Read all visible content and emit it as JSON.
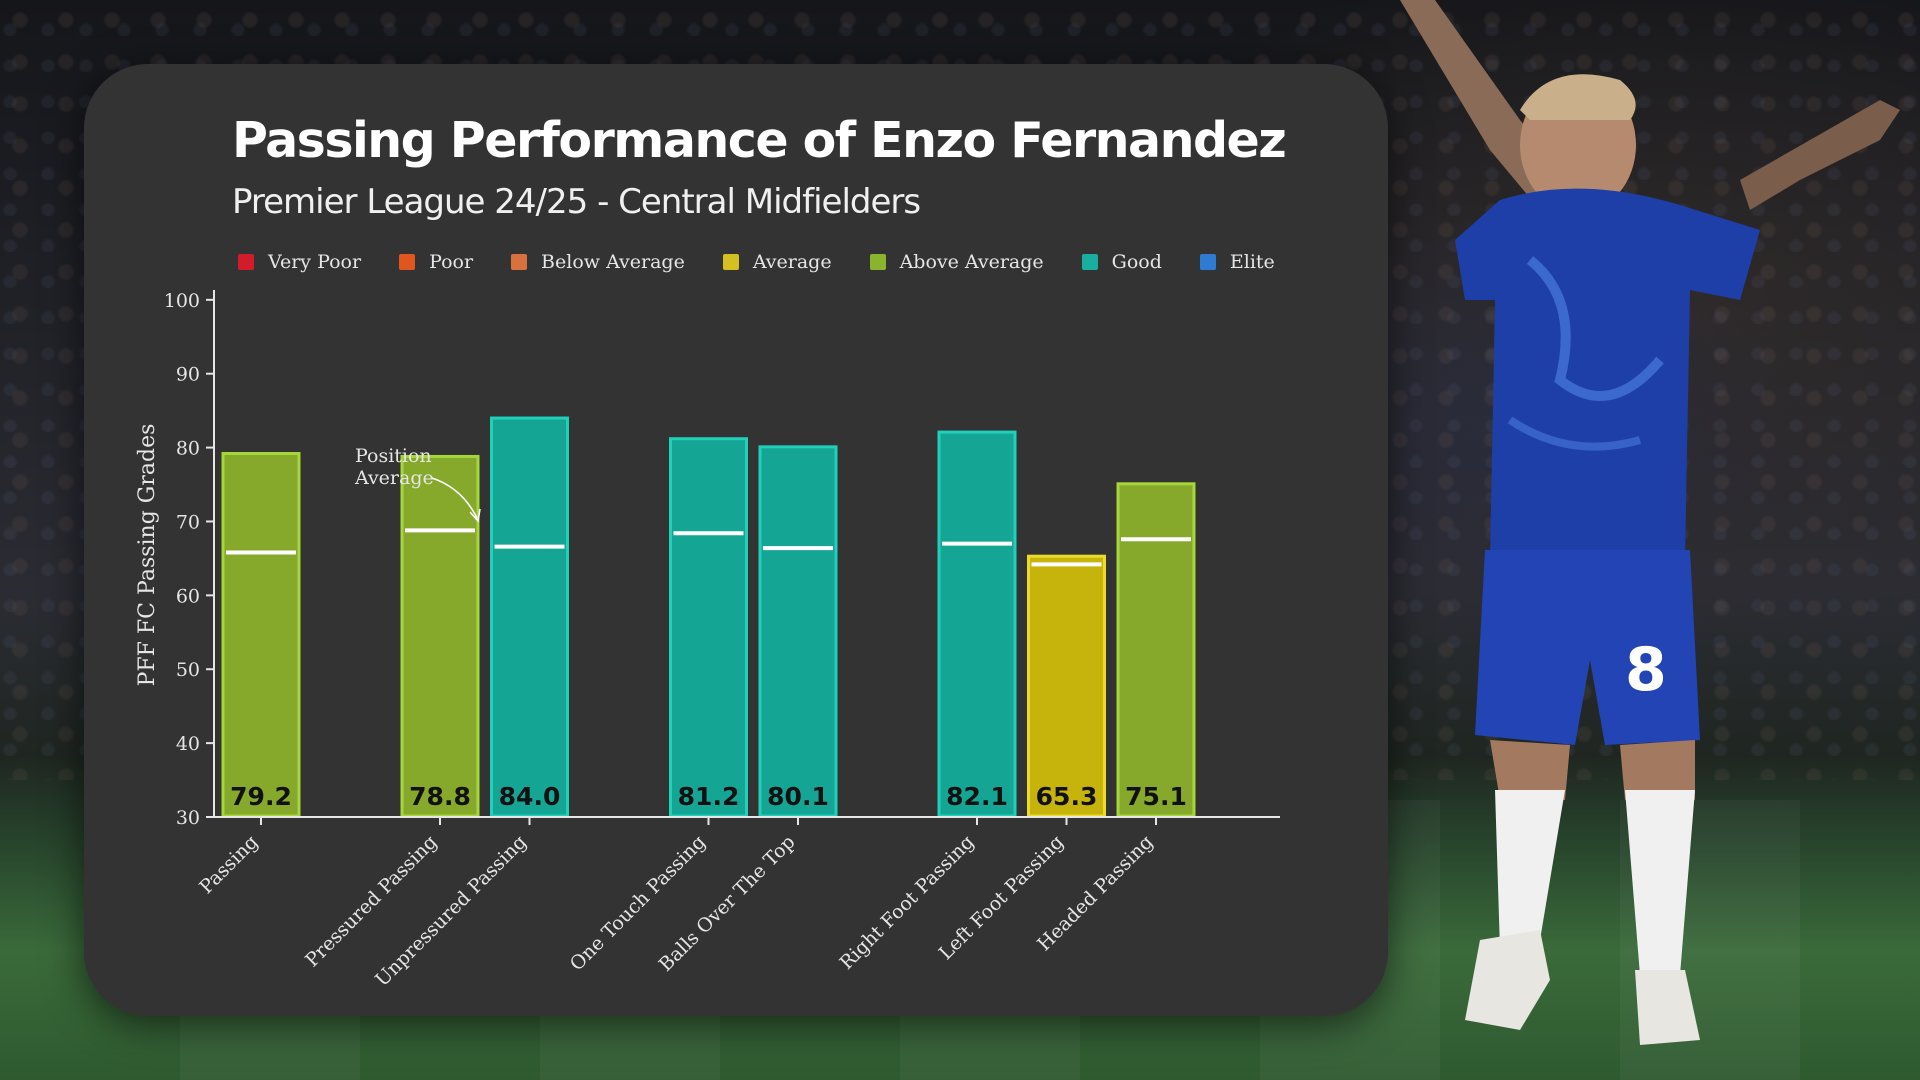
{
  "title": "Passing Performance of Enzo Fernandez",
  "subtitle": "Premier League 24/25 - Central Midfielders",
  "legend": [
    {
      "label": "Very Poor",
      "color": "#d01c2b"
    },
    {
      "label": "Poor",
      "color": "#e0561e"
    },
    {
      "label": "Below Average",
      "color": "#d9713e"
    },
    {
      "label": "Average",
      "color": "#d4c020"
    },
    {
      "label": "Above Average",
      "color": "#8ab42e"
    },
    {
      "label": "Good",
      "color": "#1aaea0"
    },
    {
      "label": "Elite",
      "color": "#2f7bd4"
    }
  ],
  "annotation": {
    "line1": "Position",
    "line2": "Average"
  },
  "chart_data": {
    "type": "bar",
    "ylabel": "PFF FC Passing Grades",
    "xlabel": "",
    "ylim": [
      30,
      100
    ],
    "yticks": [
      30,
      40,
      50,
      60,
      70,
      80,
      90,
      100
    ],
    "grid": false,
    "legend_position": "top",
    "categories": [
      "Passing",
      "Pressured Passing",
      "Unpressured Passing",
      "One Touch Passing",
      "Balls Over The Top",
      "Right Foot Passing",
      "Left Foot Passing",
      "Headed Passing"
    ],
    "groups": [
      0,
      1,
      1,
      2,
      2,
      3,
      3,
      3
    ],
    "values": [
      79.2,
      78.8,
      84.0,
      81.2,
      80.1,
      82.1,
      65.3,
      75.1
    ],
    "value_labels": [
      "79.2",
      "78.8",
      "84.0",
      "81.2",
      "80.1",
      "82.1",
      "65.3",
      "75.1"
    ],
    "position_average": [
      65.8,
      68.8,
      66.6,
      68.4,
      66.4,
      67.0,
      64.2,
      67.6
    ],
    "bar_ratings": [
      "Above Average",
      "Above Average",
      "Good",
      "Good",
      "Good",
      "Good",
      "Average",
      "Above Average"
    ],
    "rating_colors": {
      "Above Average": {
        "fill": "#86a92c",
        "stroke": "#a6d63a"
      },
      "Good": {
        "fill": "#15a594",
        "stroke": "#1fd0bb"
      },
      "Average": {
        "fill": "#c6b40c",
        "stroke": "#ecdc2a"
      }
    },
    "average_line_color": "#ffffff"
  }
}
